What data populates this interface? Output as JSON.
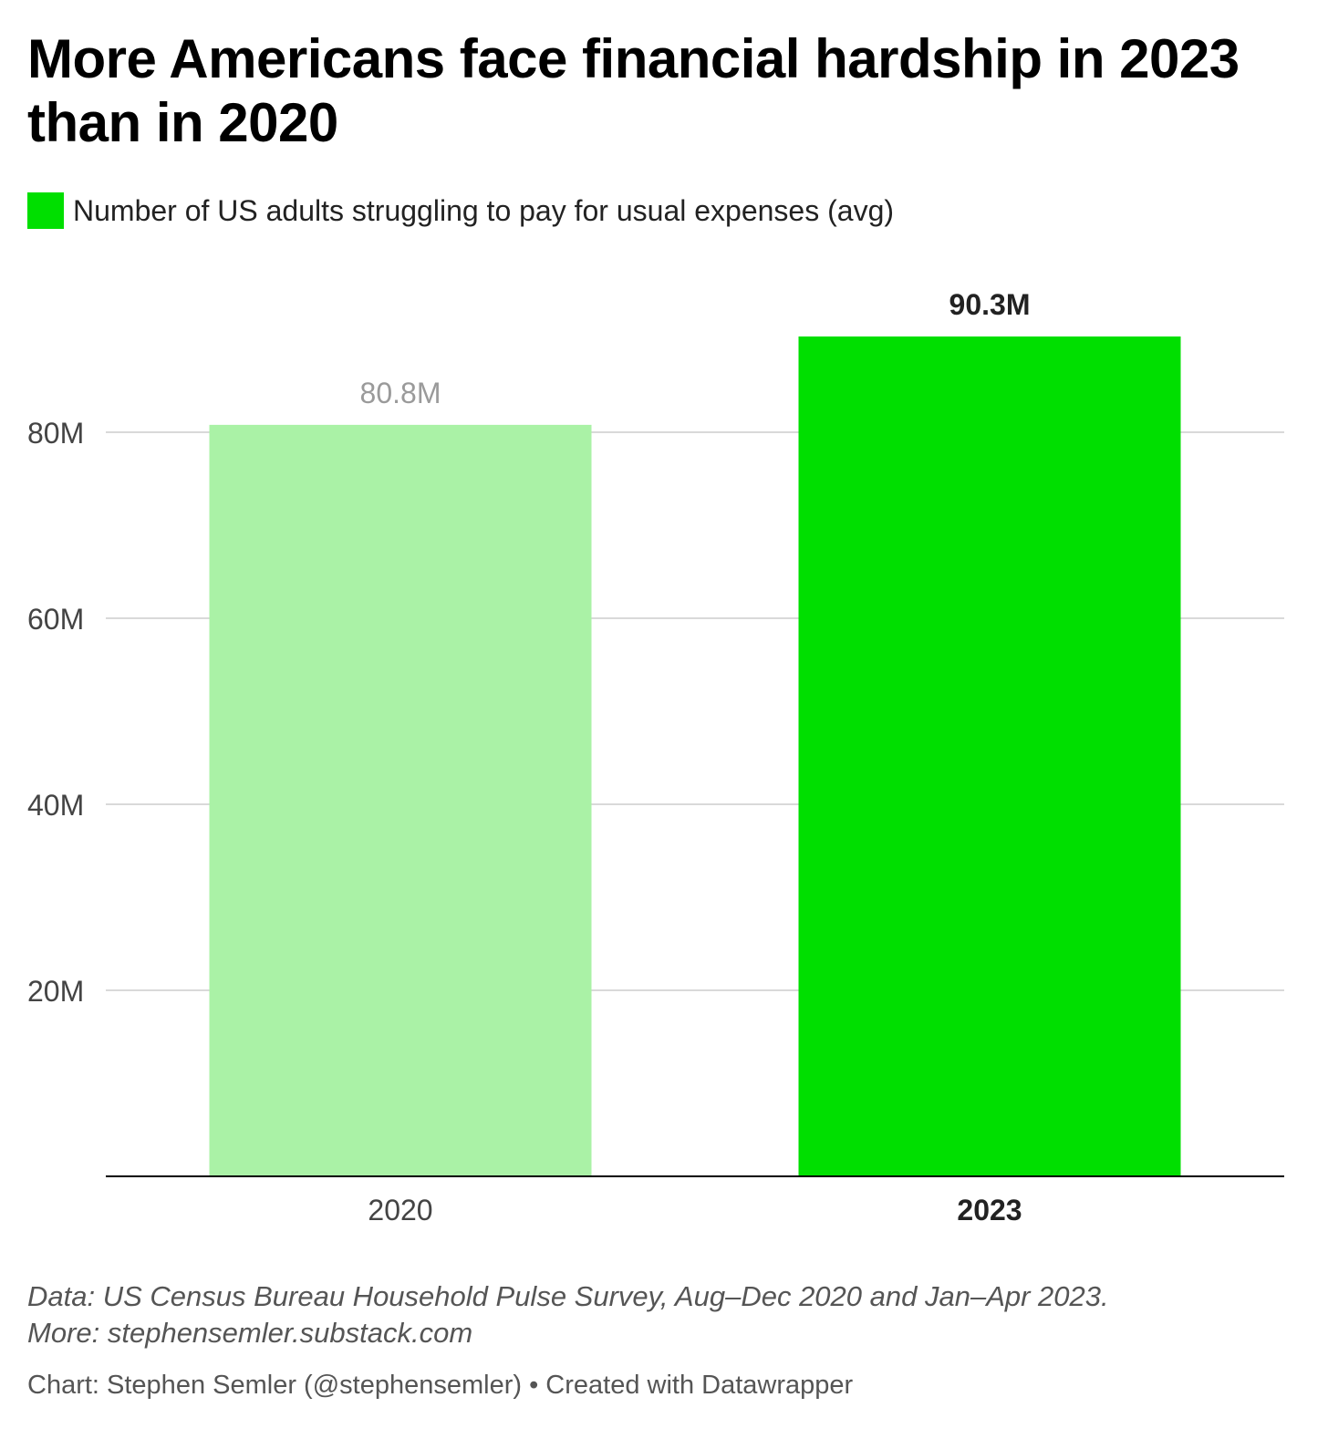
{
  "chart_data": {
    "type": "bar",
    "title": "More Americans face financial hardship in 2023 than in 2020",
    "categories": [
      "2020",
      "2023"
    ],
    "series": [
      {
        "name": "Number of US adults struggling to pay for usual expenses (avg)",
        "values": [
          80.8,
          90.3
        ]
      }
    ],
    "value_labels": [
      "80.8M",
      "90.3M"
    ],
    "y_ticks": [
      20,
      40,
      60,
      80
    ],
    "y_tick_labels": [
      "20M",
      "40M",
      "60M",
      "80M"
    ],
    "ylim": [
      0,
      90.3
    ],
    "grid": true,
    "legend_position": "top-left",
    "bar_colors": [
      "#aaf2a6",
      "#00df00"
    ],
    "highlighted_category": "2023"
  },
  "notes": {
    "line1": "Data: US Census Bureau Household Pulse Survey, Aug–Dec 2020 and Jan–Apr 2023.",
    "line2": "More: stephensemler.substack.com"
  },
  "byline": "Chart: Stephen Semler (@stephensemler) • Created with Datawrapper",
  "colors": {
    "axis": "#000000",
    "grid": "#d9d9d9",
    "tick_text": "#444444",
    "muted_label": "#9a9a9a",
    "highlight_label": "#222222"
  }
}
